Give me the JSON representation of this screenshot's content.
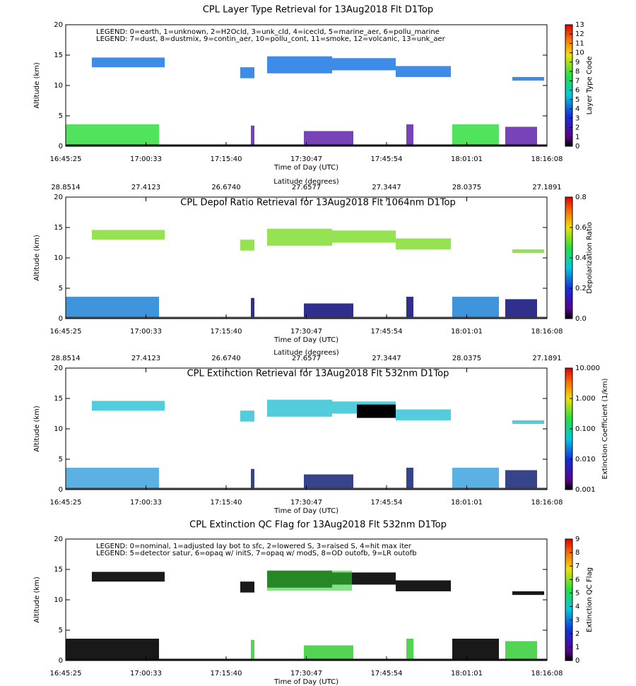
{
  "chart_data": [
    {
      "type": "curtain",
      "title": "CPL Layer Type Retrieval for 13Aug2018 Flt D1Top",
      "x_label": "Time of Day (UTC)",
      "y_label": "Altitude (km)",
      "categories": [
        "16:45:25",
        "17:00:33",
        "17:15:40",
        "17:30:47",
        "17:45:54",
        "18:01:01",
        "18:16:08"
      ],
      "ylim": [
        0,
        20
      ],
      "yticks": [
        0,
        5,
        10,
        15,
        20
      ],
      "legend_lines": [
        "LEGEND: 0=earth, 1=unknown, 2=H2Ocld, 3=unk_cld, 4=icecld, 5=marine_aer, 6=pollu_marine",
        "LEGEND: 7=dust, 8=dustmix, 9=contin_aer, 10=pollu_cont, 11=smoke, 12=volcanic, 13=unk_aer"
      ],
      "colorbar_label": "Layer Type Code",
      "colorbar_lim": [
        0,
        13
      ],
      "colorbar_ticks": [
        0,
        1,
        2,
        3,
        4,
        5,
        6,
        7,
        8,
        9,
        10,
        11,
        12,
        13
      ],
      "colorbar_log": false
    },
    {
      "type": "curtain",
      "title": "CPL Depol Ratio Retrieval for 13Aug2018 Flt 1064nm D1Top",
      "x_label": "Time of Day (UTC)",
      "y_label": "Altitude (km)",
      "categories": [
        "16:45:25",
        "17:00:33",
        "17:15:40",
        "17:30:47",
        "17:45:54",
        "18:01:01",
        "18:16:08"
      ],
      "top_label": "Latitude (degrees)",
      "top_ticks": [
        28.8514,
        27.4123,
        {
          "value": 26.674,
          "label": "26.6740"
        },
        27.6577,
        27.3447,
        28.0375,
        27.1891
      ],
      "ylim": [
        0,
        20
      ],
      "yticks": [
        0,
        5,
        10,
        15,
        20
      ],
      "colorbar_label": "Depolarization Ratio",
      "colorbar_lim": [
        0,
        0.8
      ],
      "colorbar_ticks": [
        {
          "value": 0,
          "label": "0.0"
        },
        {
          "value": 0.2,
          "label": "0.2"
        },
        {
          "value": 0.4,
          "label": "0.4"
        },
        {
          "value": 0.6,
          "label": "0.6"
        },
        {
          "value": 0.8,
          "label": "0.8"
        }
      ],
      "colorbar_log": false
    },
    {
      "type": "curtain",
      "title": "CPL Extinction Retrieval for 13Aug2018 Flt 532nm D1Top",
      "x_label": "Time of Day (UTC)",
      "y_label": "Altitude (km)",
      "categories": [
        "16:45:25",
        "17:00:33",
        "17:15:40",
        "17:30:47",
        "17:45:54",
        "18:01:01",
        "18:16:08"
      ],
      "top_label": "Latitude (degrees)",
      "top_ticks": [
        28.8514,
        27.4123,
        {
          "value": 26.674,
          "label": "26.6740"
        },
        27.6577,
        27.3447,
        28.0375,
        27.1891
      ],
      "ylim": [
        0,
        20
      ],
      "yticks": [
        0,
        5,
        10,
        15,
        20
      ],
      "colorbar_label": "Extinction Coefficient (1/km)",
      "colorbar_lim": [
        0.001,
        10
      ],
      "colorbar_ticks": [
        0.001,
        {
          "value": 0.01,
          "label": "0.010"
        },
        {
          "value": 0.1,
          "label": "0.100"
        },
        {
          "value": 1,
          "label": "1.000"
        },
        {
          "value": 10,
          "label": "10.000"
        }
      ],
      "colorbar_log": true
    },
    {
      "type": "curtain",
      "title": "CPL Extinction QC Flag for 13Aug2018 Flt 532nm D1Top",
      "x_label": "Time of Day (UTC)",
      "y_label": "Altitude (km)",
      "categories": [
        "16:45:25",
        "17:00:33",
        "17:15:40",
        "17:30:47",
        "17:45:54",
        "18:01:01",
        "18:16:08"
      ],
      "ylim": [
        0,
        20
      ],
      "yticks": [
        0,
        5,
        10,
        15,
        20
      ],
      "legend_lines": [
        "LEGEND: 0=nominal, 1=adjusted lay bot to sfc, 2=lowered S, 3=raised S, 4=hit max iter",
        "LEGEND: 5=detector satur, 6=opaq w/ initS, 7=opaq w/ modS, 8=OD outofb, 9=LR outofb"
      ],
      "colorbar_label": "Extinction QC Flag",
      "colorbar_lim": [
        0,
        9
      ],
      "colorbar_ticks": [
        0,
        1,
        2,
        3,
        4,
        5,
        6,
        7,
        8,
        9
      ],
      "colorbar_log": false
    }
  ]
}
